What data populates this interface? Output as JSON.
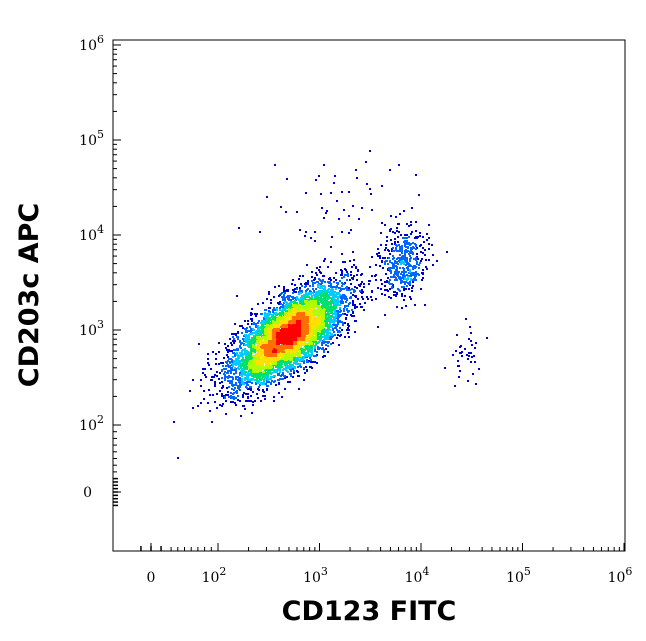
{
  "chart_data": {
    "type": "scatter",
    "plot_style": "density-colored flow cytometry dot plot",
    "xlabel": "CD123 FITC",
    "ylabel": "CD203c APC",
    "x_scale": "biexponential (log above ~10^2, linear around 0)",
    "y_scale": "biexponential (log above ~10^2, linear around 0)",
    "x_ticks": [
      {
        "value": 0,
        "label": "0"
      },
      {
        "value": 100,
        "base": "10",
        "exp": "2"
      },
      {
        "value": 1000,
        "base": "10",
        "exp": "3"
      },
      {
        "value": 10000,
        "base": "10",
        "exp": "4"
      },
      {
        "value": 100000,
        "base": "10",
        "exp": "5"
      },
      {
        "value": 1000000,
        "base": "10",
        "exp": "6"
      }
    ],
    "y_ticks": [
      {
        "value": 0,
        "label": "0"
      },
      {
        "value": 100,
        "base": "10",
        "exp": "2"
      },
      {
        "value": 1000,
        "base": "10",
        "exp": "3"
      },
      {
        "value": 10000,
        "base": "10",
        "exp": "4"
      },
      {
        "value": 100000,
        "base": "10",
        "exp": "5"
      },
      {
        "value": 1000000,
        "base": "10",
        "exp": "6"
      }
    ],
    "grid": false,
    "legend": "none",
    "density_colors": [
      "#0000cc",
      "#0066ff",
      "#00ccff",
      "#00e070",
      "#b0ff00",
      "#ffe000",
      "#ff7000",
      "#ff0000"
    ],
    "populations": [
      {
        "center_x": 480,
        "center_y": 900,
        "spread_log_x": 0.28,
        "spread_log_y": 0.26,
        "correlation": 0.7,
        "approx_events": 6000,
        "description": "main basophil-negative population"
      },
      {
        "center_x": 6500,
        "center_y": 5000,
        "spread_log_x": 0.12,
        "spread_log_y": 0.18,
        "correlation": 0.2,
        "approx_events": 450,
        "description": "CD123+ CD203c+ basophils"
      },
      {
        "center_x": 28000,
        "center_y": 550,
        "spread_log_x": 0.09,
        "spread_log_y": 0.13,
        "correlation": 0.0,
        "approx_events": 40,
        "description": "CD123 high, CD203c low events"
      },
      {
        "center_x": 1800,
        "center_y": 15000,
        "spread_log_x": 0.45,
        "spread_log_y": 0.35,
        "correlation": 0.3,
        "approx_events": 70,
        "description": "scattered high events"
      }
    ]
  }
}
